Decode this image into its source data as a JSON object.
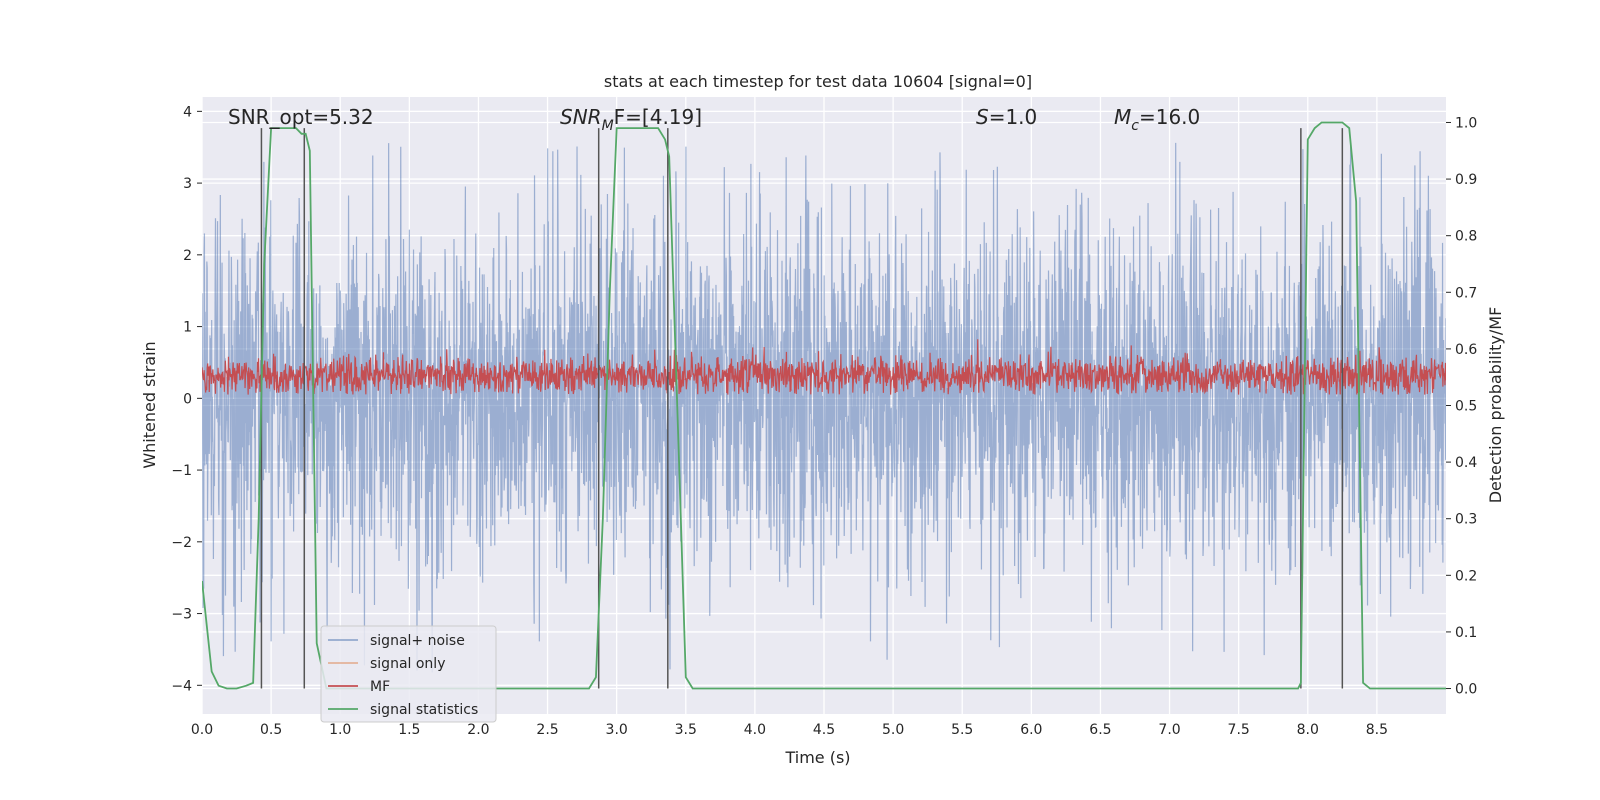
{
  "chart_data": {
    "type": "line",
    "title": "stats at each timestep for test data 10604 [signal=0]",
    "xlabel": "Time (s)",
    "ylabel": "Whitened strain",
    "y2label": "Detection probability/MF",
    "xlim": [
      0.0,
      9.0
    ],
    "ylim": [
      -4.4,
      4.2
    ],
    "y2lim": [
      -0.045,
      1.045
    ],
    "xticks": [
      "0.0",
      "0.5",
      "1.0",
      "1.5",
      "2.0",
      "2.5",
      "3.0",
      "3.5",
      "4.0",
      "4.5",
      "5.0",
      "5.5",
      "6.0",
      "6.5",
      "7.0",
      "7.5",
      "8.0",
      "8.5"
    ],
    "yticks": [
      "4",
      "3",
      "2",
      "1",
      "0",
      "−1",
      "−2",
      "−3",
      "−4"
    ],
    "y2ticks": [
      "1.0",
      "0.9",
      "0.8",
      "0.7",
      "0.6",
      "0.5",
      "0.4",
      "0.3",
      "0.2",
      "0.1",
      "0.0"
    ],
    "grid": true,
    "background": "#eaeaf2",
    "annotations": {
      "snr_opt": "SNR_opt=5.32",
      "snr_mf_symbol": "SNR",
      "snr_mf_sub": "M",
      "snr_mf_tail": "F=[4.19]",
      "s_symbol": "S",
      "s_value": "=1.0",
      "mc_symbol": "M",
      "mc_sub": "c",
      "mc_value": "=16.0"
    },
    "legend": {
      "placement": "lower-left",
      "entries": [
        "signal+ noise",
        "signal only",
        "MF",
        "signal statistics"
      ]
    },
    "series": [
      {
        "name": "signal+ noise",
        "color": "#4c72b0",
        "alpha": 0.5,
        "axis": "left",
        "kind": "noise",
        "sigma": 1.25,
        "peak_max": 3.6,
        "peak_min": -3.9
      },
      {
        "name": "signal only",
        "color": "#dd8452",
        "alpha": 0.5,
        "axis": "left",
        "values": []
      },
      {
        "name": "MF",
        "color": "#c44e52",
        "axis": "left",
        "kind": "noise",
        "center": 0.32,
        "min": 0.05,
        "max": 0.93
      },
      {
        "name": "signal statistics",
        "color": "#55a868",
        "axis": "right",
        "x": [
          0.0,
          0.07,
          0.12,
          0.18,
          0.25,
          0.32,
          0.37,
          0.41,
          0.45,
          0.5,
          0.55,
          0.6,
          0.68,
          0.72,
          0.75,
          0.78,
          0.83,
          0.9,
          1.0,
          2.0,
          2.5,
          2.8,
          2.85,
          2.9,
          2.95,
          3.0,
          3.1,
          3.2,
          3.3,
          3.35,
          3.38,
          3.45,
          3.5,
          3.55,
          4.0,
          5.0,
          6.0,
          7.0,
          7.5,
          7.93,
          7.95,
          8.0,
          8.05,
          8.1,
          8.15,
          8.2,
          8.25,
          8.3,
          8.35,
          8.4,
          8.45,
          8.5,
          8.6,
          8.7,
          8.8,
          9.0
        ],
        "y": [
          0.19,
          0.03,
          0.005,
          0.0,
          0.0,
          0.005,
          0.01,
          0.3,
          0.75,
          0.99,
          0.99,
          0.99,
          0.99,
          0.98,
          0.98,
          0.95,
          0.08,
          0.0,
          0.0,
          0.0,
          0.0,
          0.0,
          0.02,
          0.3,
          0.7,
          0.99,
          0.99,
          0.99,
          0.99,
          0.97,
          0.94,
          0.41,
          0.02,
          0.0,
          0.0,
          0.0,
          0.0,
          0.0,
          0.0,
          0.0,
          0.01,
          0.97,
          0.99,
          1.0,
          1.0,
          1.0,
          1.0,
          0.99,
          0.86,
          0.01,
          0.0,
          0.0,
          0.0,
          0.0,
          0.0,
          0.0
        ]
      },
      {
        "name": "event markers",
        "color": "#555555",
        "axis": "right",
        "kind": "vlines",
        "x": [
          0.43,
          0.74,
          2.87,
          3.37,
          7.95,
          8.25
        ],
        "ymax": [
          0.99,
          0.99,
          0.99,
          0.99,
          0.99,
          0.99
        ]
      }
    ]
  }
}
